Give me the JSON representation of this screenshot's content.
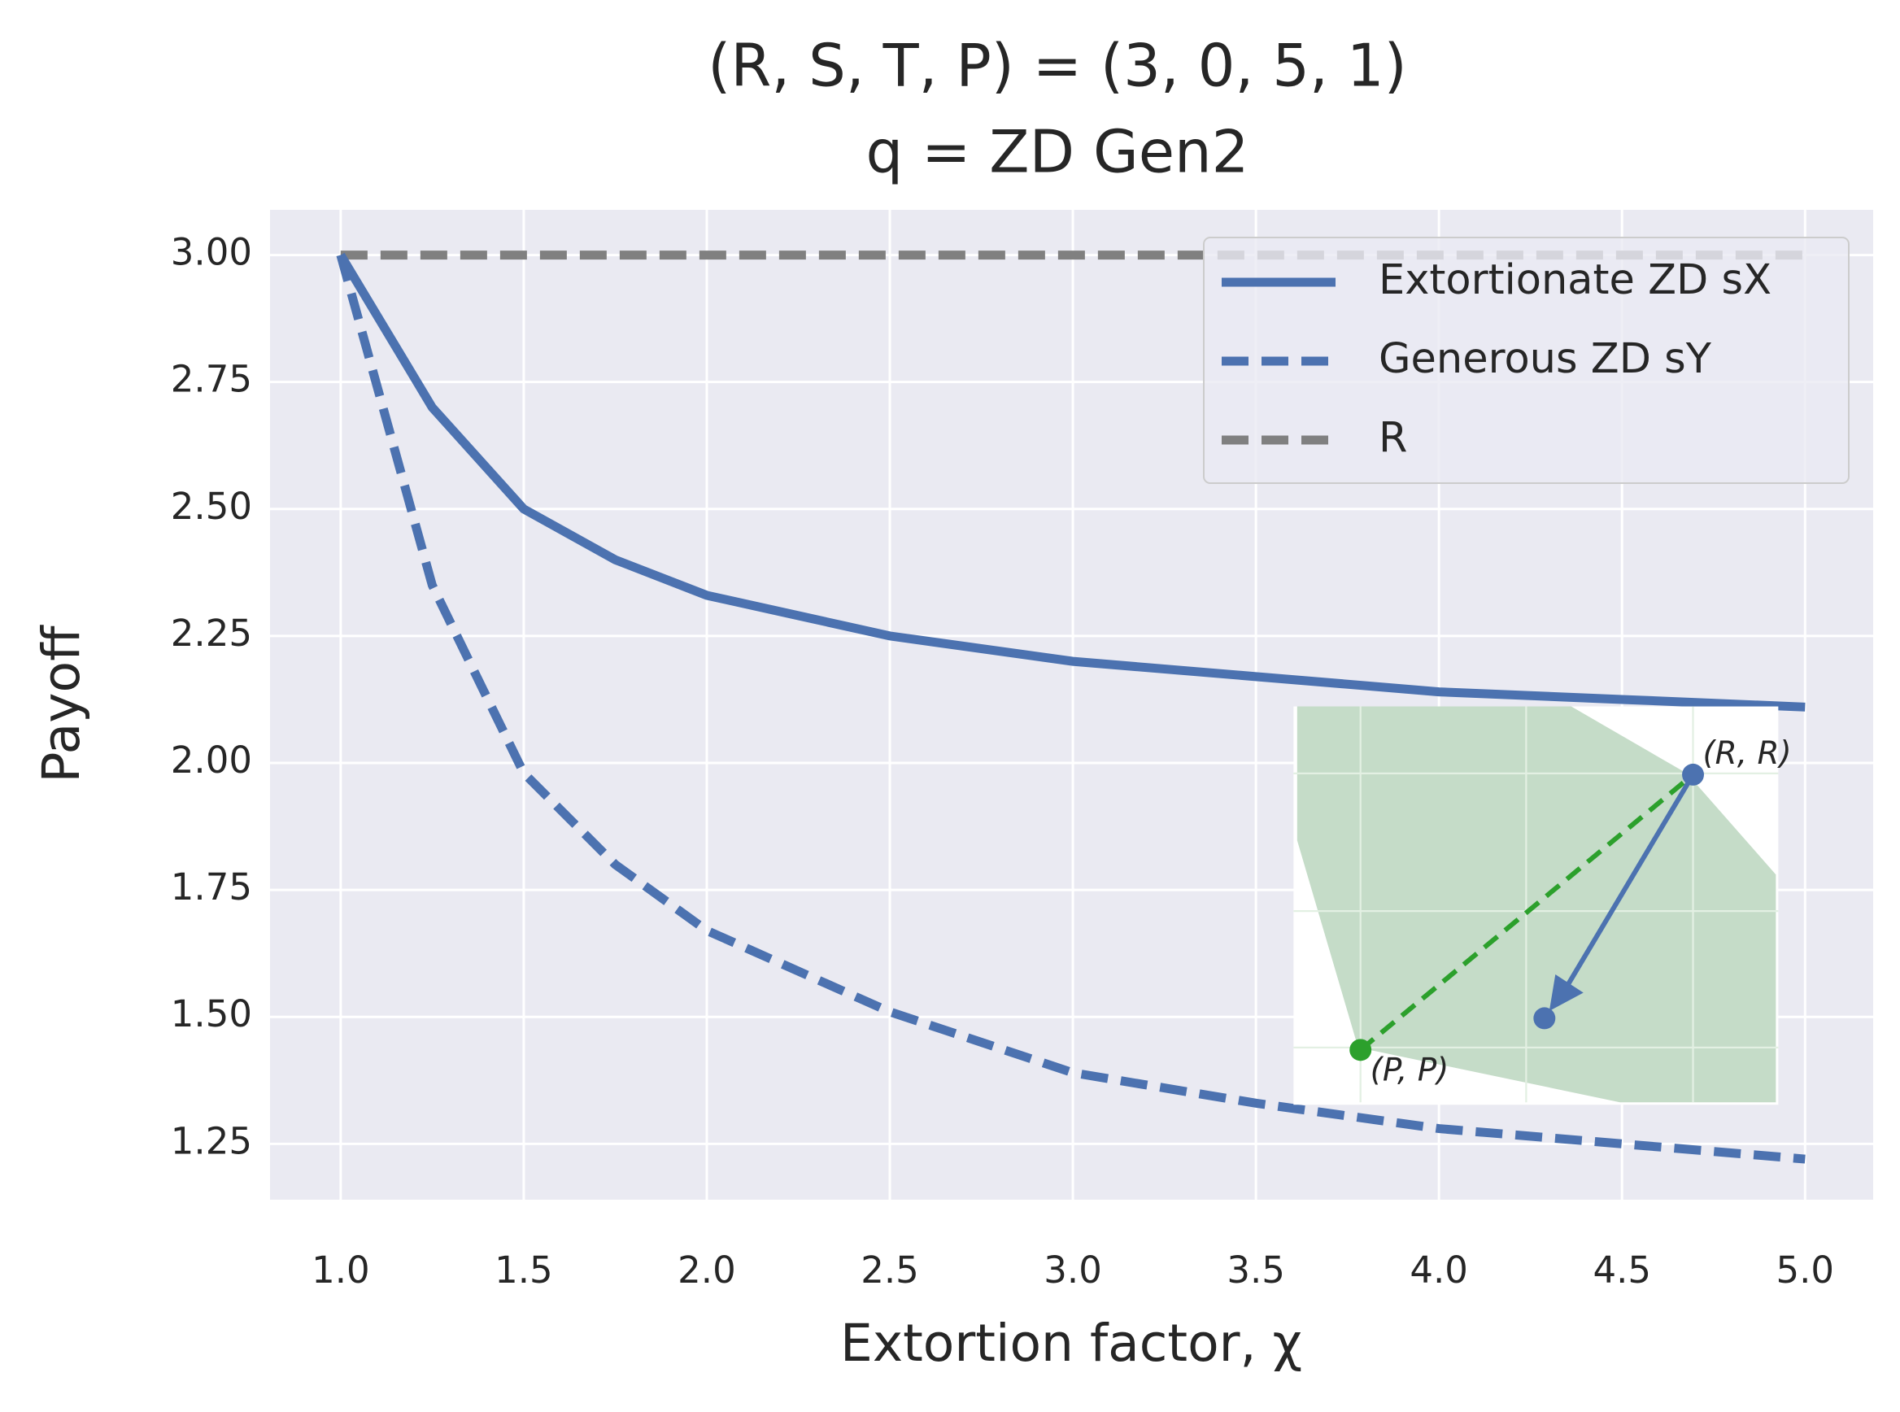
{
  "chart_data": {
    "type": "line",
    "title": "(R, S, T, P) = (3, 0, 5, 1)",
    "subtitle": "q = ZD Gen2",
    "xlabel": "Extortion factor, χ",
    "ylabel": "Payoff",
    "x": [
      1,
      1.25,
      1.5,
      1.75,
      2,
      2.5,
      3,
      3.5,
      4,
      4.5,
      5
    ],
    "series": [
      {
        "name": "Extortionate ZD sX",
        "color": "#4c72b0",
        "linestyle": "solid",
        "values": [
          3,
          2.7,
          2.5,
          2.4,
          2.33,
          2.25,
          2.2,
          2.17,
          2.14,
          2.125,
          2.11
        ]
      },
      {
        "name": "Generous ZD sY",
        "color": "#4c72b0",
        "linestyle": "dashed",
        "values": [
          3,
          2.35,
          1.98,
          1.8,
          1.67,
          1.51,
          1.39,
          1.33,
          1.28,
          1.25,
          1.22
        ]
      },
      {
        "name": "R",
        "color": "#808080",
        "linestyle": "dashed",
        "values": [
          3,
          3,
          3,
          3,
          3,
          3,
          3,
          3,
          3,
          3,
          3
        ]
      }
    ],
    "xlim": [
      0.807,
      5.186
    ],
    "ylim": [
      1.14,
      3.089
    ],
    "xticks": [
      {
        "value": 1,
        "label": "1.0"
      },
      {
        "value": 1.5,
        "label": "1.5"
      },
      {
        "value": 2,
        "label": "2.0"
      },
      {
        "value": 2.5,
        "label": "2.5"
      },
      {
        "value": 3,
        "label": "3.0"
      },
      {
        "value": 3.5,
        "label": "3.5"
      },
      {
        "value": 4,
        "label": "4.0"
      },
      {
        "value": 4.5,
        "label": "4.5"
      },
      {
        "value": 5,
        "label": "5.0"
      }
    ],
    "yticks": [
      {
        "value": 1.25,
        "label": "1.25"
      },
      {
        "value": 1.5,
        "label": "1.50"
      },
      {
        "value": 1.75,
        "label": "1.75"
      },
      {
        "value": 2,
        "label": "2.00"
      },
      {
        "value": 2.25,
        "label": "2.25"
      },
      {
        "value": 2.5,
        "label": "2.50"
      },
      {
        "value": 2.75,
        "label": "2.75"
      },
      {
        "value": 3,
        "label": "3.00"
      }
    ],
    "grid": true,
    "legend": "upper right",
    "annotations": [
      "(R, R)",
      "(P, P)"
    ]
  }
}
